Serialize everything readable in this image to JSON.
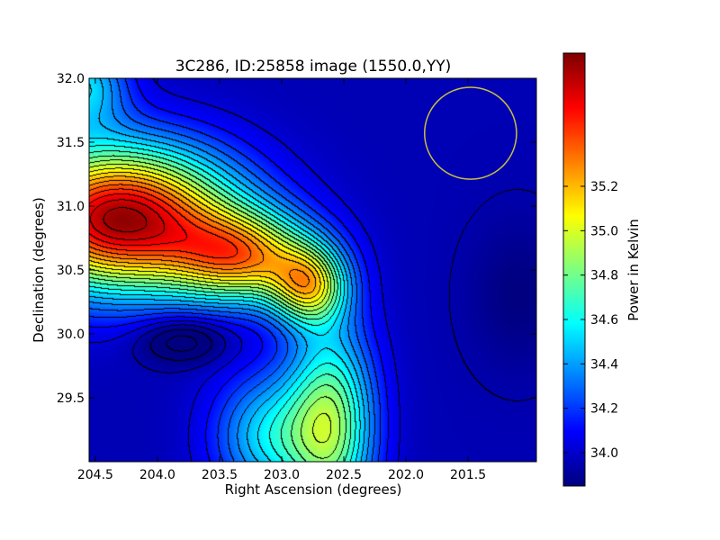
{
  "chart_data": {
    "type": "heatmap",
    "title": "3C286, ID:25858 image (1550.0,YY)",
    "xlabel": "Right Ascension (degrees)",
    "ylabel": "Declination (degrees)",
    "colorbar_label": "Power in Kelvin",
    "xlim": [
      204.55,
      200.95
    ],
    "ylim": [
      29.0,
      32.0
    ],
    "x_ticks": [
      204.5,
      204.0,
      203.5,
      203.0,
      202.5,
      202.0,
      201.5
    ],
    "x_tick_labels": [
      "204.5",
      "204.0",
      "203.5",
      "203.0",
      "202.5",
      "202.0",
      "201.5"
    ],
    "y_ticks": [
      29.5,
      30.0,
      30.5,
      31.0,
      31.5,
      32.0
    ],
    "y_tick_labels": [
      "29.5",
      "30.0",
      "30.5",
      "31.0",
      "31.5",
      "32.0"
    ],
    "colorbar_range": [
      33.85,
      35.8
    ],
    "colorbar_ticks": [
      34.0,
      34.2,
      34.4,
      34.6,
      34.8,
      35.0,
      35.2
    ],
    "colorbar_tick_labels": [
      "34.0",
      "34.2",
      "34.4",
      "34.6",
      "34.8",
      "35.0",
      "35.2"
    ],
    "colormap": "jet",
    "contour_color": "#000000",
    "beam_color": "#c8c040",
    "beam_center": [
      201.48,
      31.57
    ],
    "features": [
      {
        "kind": "maximum",
        "ra": 204.3,
        "dec": 30.95,
        "value": 35.75
      },
      {
        "kind": "local-maximum",
        "ra": 202.77,
        "dec": 30.37,
        "value": 35.3
      },
      {
        "kind": "minimum",
        "ra": 201.1,
        "dec": 30.35,
        "value": 33.87
      },
      {
        "kind": "local-minimum",
        "ra": 202.32,
        "dec": 31.45,
        "value": 34.05
      },
      {
        "kind": "local-minimum",
        "ra": 203.8,
        "dec": 29.95,
        "value": 34.2
      }
    ]
  }
}
